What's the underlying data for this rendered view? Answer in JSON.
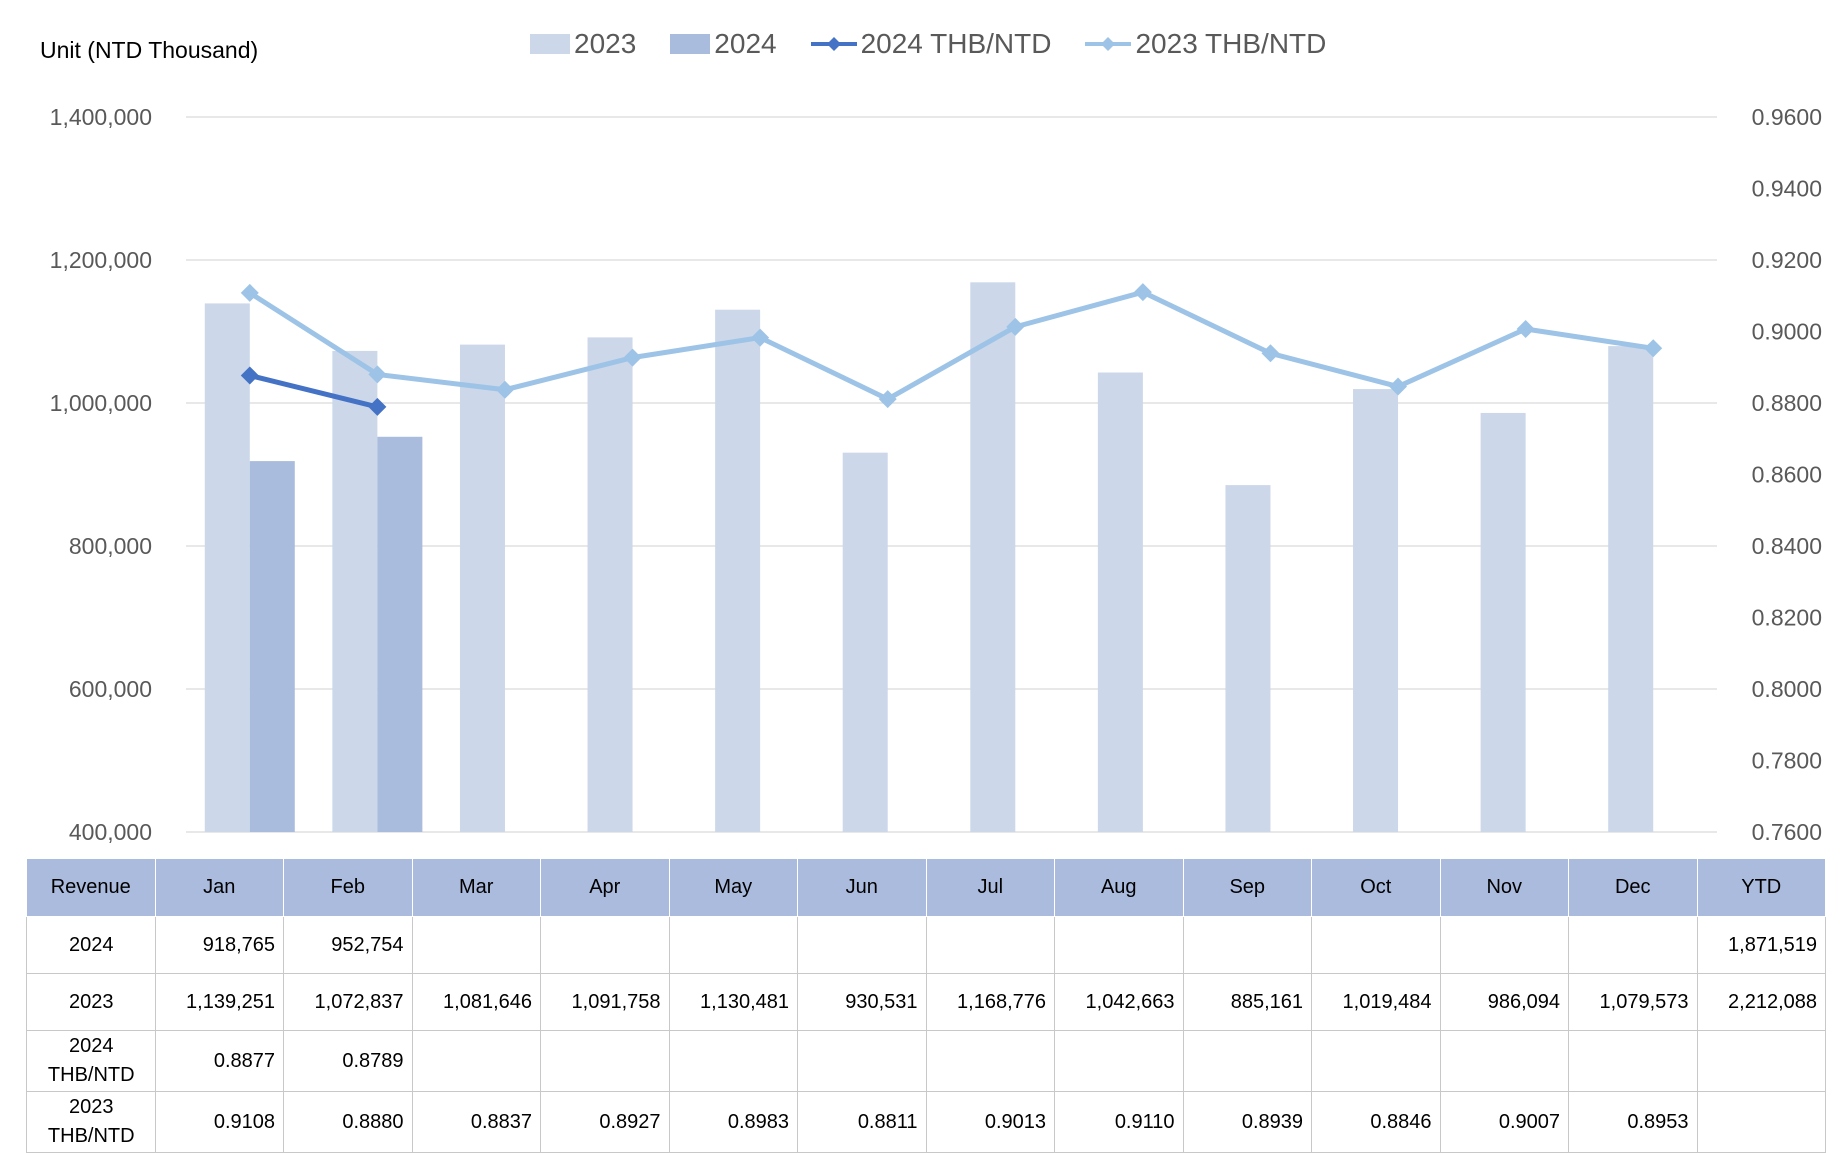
{
  "unit_label": "Unit (NTD  Thousand)",
  "legend": [
    {
      "label": "2023",
      "kind": "bar",
      "color": "#ccd7e9"
    },
    {
      "label": "2024",
      "kind": "bar",
      "color": "#a9bcde"
    },
    {
      "label": "2024 THB/NTD",
      "kind": "line",
      "color": "#4472c4"
    },
    {
      "label": "2023 THB/NTD",
      "kind": "line",
      "color": "#9dc3e6"
    }
  ],
  "chart_data": {
    "type": "bar",
    "categories": [
      "Jan",
      "Feb",
      "Mar",
      "Apr",
      "May",
      "Jun",
      "Jul",
      "Aug",
      "Sep",
      "Oct",
      "Nov",
      "Dec"
    ],
    "series": [
      {
        "name": "2023",
        "kind": "bar",
        "color": "#ccd7e9",
        "values": [
          1139251,
          1072837,
          1081646,
          1091758,
          1130481,
          930531,
          1168776,
          1042663,
          885161,
          1019484,
          986094,
          1079573
        ]
      },
      {
        "name": "2024",
        "kind": "bar",
        "color": "#a9bcde",
        "values": [
          918765,
          952754,
          null,
          null,
          null,
          null,
          null,
          null,
          null,
          null,
          null,
          null
        ]
      },
      {
        "name": "2024 THB/NTD",
        "kind": "line",
        "axis": "right",
        "color": "#4472c4",
        "values": [
          0.8877,
          0.8789,
          null,
          null,
          null,
          null,
          null,
          null,
          null,
          null,
          null,
          null
        ]
      },
      {
        "name": "2023 THB/NTD",
        "kind": "line",
        "axis": "right",
        "color": "#9dc3e6",
        "values": [
          0.9108,
          0.888,
          0.8837,
          0.8927,
          0.8983,
          0.8811,
          0.9013,
          0.911,
          0.8939,
          0.8846,
          0.9007,
          0.8953
        ]
      }
    ],
    "ylim": [
      400000,
      1400000
    ],
    "y_ticks": [
      "1,400,000",
      "1,200,000",
      "1,000,000",
      "800,000",
      "600,000",
      "400,000"
    ],
    "y2lim": [
      0.76,
      0.96
    ],
    "y2_ticks": [
      "0.9600",
      "0.9400",
      "0.9200",
      "0.9000",
      "0.8800",
      "0.8600",
      "0.8400",
      "0.8200",
      "0.8000",
      "0.7800",
      "0.7600"
    ],
    "grid": true,
    "legend_position": "top"
  },
  "table": {
    "header": [
      "Revenue",
      "Jan",
      "Feb",
      "Mar",
      "Apr",
      "May",
      "Jun",
      "Jul",
      "Aug",
      "Sep",
      "Oct",
      "Nov",
      "Dec",
      "YTD"
    ],
    "rows": [
      {
        "label": "2024",
        "cells": [
          "918,765",
          "952,754",
          "",
          "",
          "",
          "",
          "",
          "",
          "",
          "",
          "",
          "",
          "1,871,519"
        ]
      },
      {
        "label": "2023",
        "cells": [
          "1,139,251",
          "1,072,837",
          "1,081,646",
          "1,091,758",
          "1,130,481",
          "930,531",
          "1,168,776",
          "1,042,663",
          "885,161",
          "1,019,484",
          "986,094",
          "1,079,573",
          "2,212,088"
        ]
      },
      {
        "label": "2024\nTHB/NTD",
        "cells": [
          "0.8877",
          "0.8789",
          "",
          "",
          "",
          "",
          "",
          "",
          "",
          "",
          "",
          "",
          ""
        ]
      },
      {
        "label": "2023\nTHB/NTD",
        "cells": [
          "0.9108",
          "0.8880",
          "0.8837",
          "0.8927",
          "0.8983",
          "0.8811",
          "0.9013",
          "0.9110",
          "0.8939",
          "0.8846",
          "0.9007",
          "0.8953",
          ""
        ]
      }
    ]
  }
}
